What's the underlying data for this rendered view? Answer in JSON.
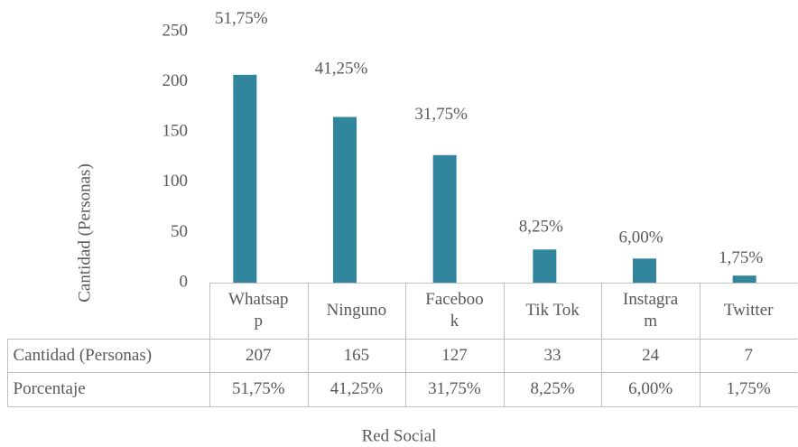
{
  "chart_data": {
    "type": "bar",
    "categories": [
      "Whatsapp",
      "Ninguno",
      "Facebook",
      "Tik Tok",
      "Instagram",
      "Twitter"
    ],
    "series": [
      {
        "name": "Cantidad (Personas)",
        "color": "#31859c",
        "values": [
          207,
          165,
          127,
          33,
          24,
          7
        ]
      },
      {
        "name": "Porcentaje",
        "values": [
          51.75,
          41.25,
          31.75,
          8.25,
          6,
          1.75
        ],
        "value_labels": [
          "51,75%",
          "41,25%",
          "31,75%",
          "8,25%",
          "6,00%",
          "1,75%"
        ]
      }
    ],
    "ylim": [
      0,
      250
    ],
    "yticks": [
      0,
      50,
      100,
      150,
      200,
      250
    ],
    "y_axis_label": "Cantidad (Personas)",
    "x_axis_label": "Red Social",
    "data_table": true
  }
}
